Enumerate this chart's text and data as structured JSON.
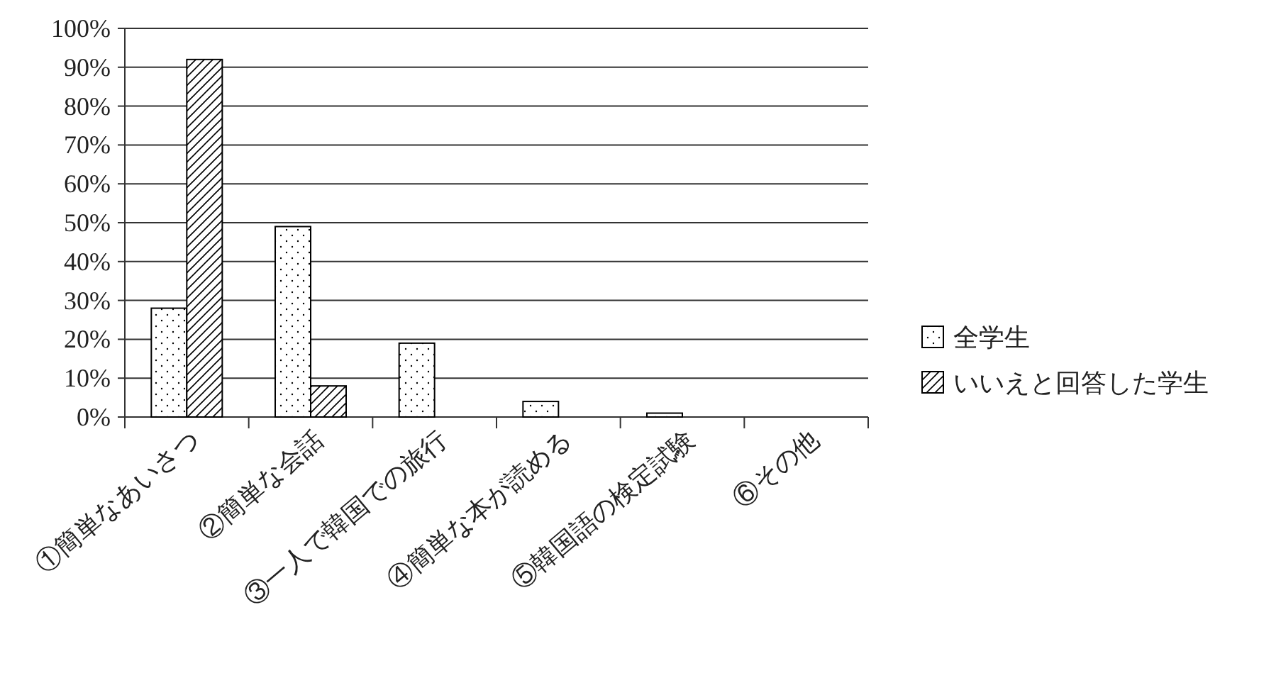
{
  "chart_data": {
    "type": "bar",
    "categories": [
      "①簡単なあいさつ",
      "②簡単な会話",
      "③一人で韓国での旅行",
      "④簡単な本が読める",
      "⑤韓国語の検定試験",
      "⑥その他"
    ],
    "series": [
      {
        "name": "全学生",
        "color": "#000000",
        "values": [
          28,
          49,
          19,
          4,
          1,
          0
        ]
      },
      {
        "name": "いいえと回答した学生",
        "color": "#000000",
        "values": [
          92,
          8,
          0,
          0,
          0,
          0
        ]
      }
    ],
    "ylim": [
      0,
      100
    ],
    "yticks": [
      {
        "value": 0,
        "label": "0%"
      },
      {
        "value": 10,
        "label": "10%"
      },
      {
        "value": 20,
        "label": "20%"
      },
      {
        "value": 30,
        "label": "30%"
      },
      {
        "value": 40,
        "label": "40%"
      },
      {
        "value": 50,
        "label": "50%"
      },
      {
        "value": 60,
        "label": "60%"
      },
      {
        "value": 70,
        "label": "70%"
      },
      {
        "value": 80,
        "label": "80%"
      },
      {
        "value": 90,
        "label": "90%"
      },
      {
        "value": 100,
        "label": "100%"
      }
    ],
    "grid": "y",
    "legend": "right"
  }
}
